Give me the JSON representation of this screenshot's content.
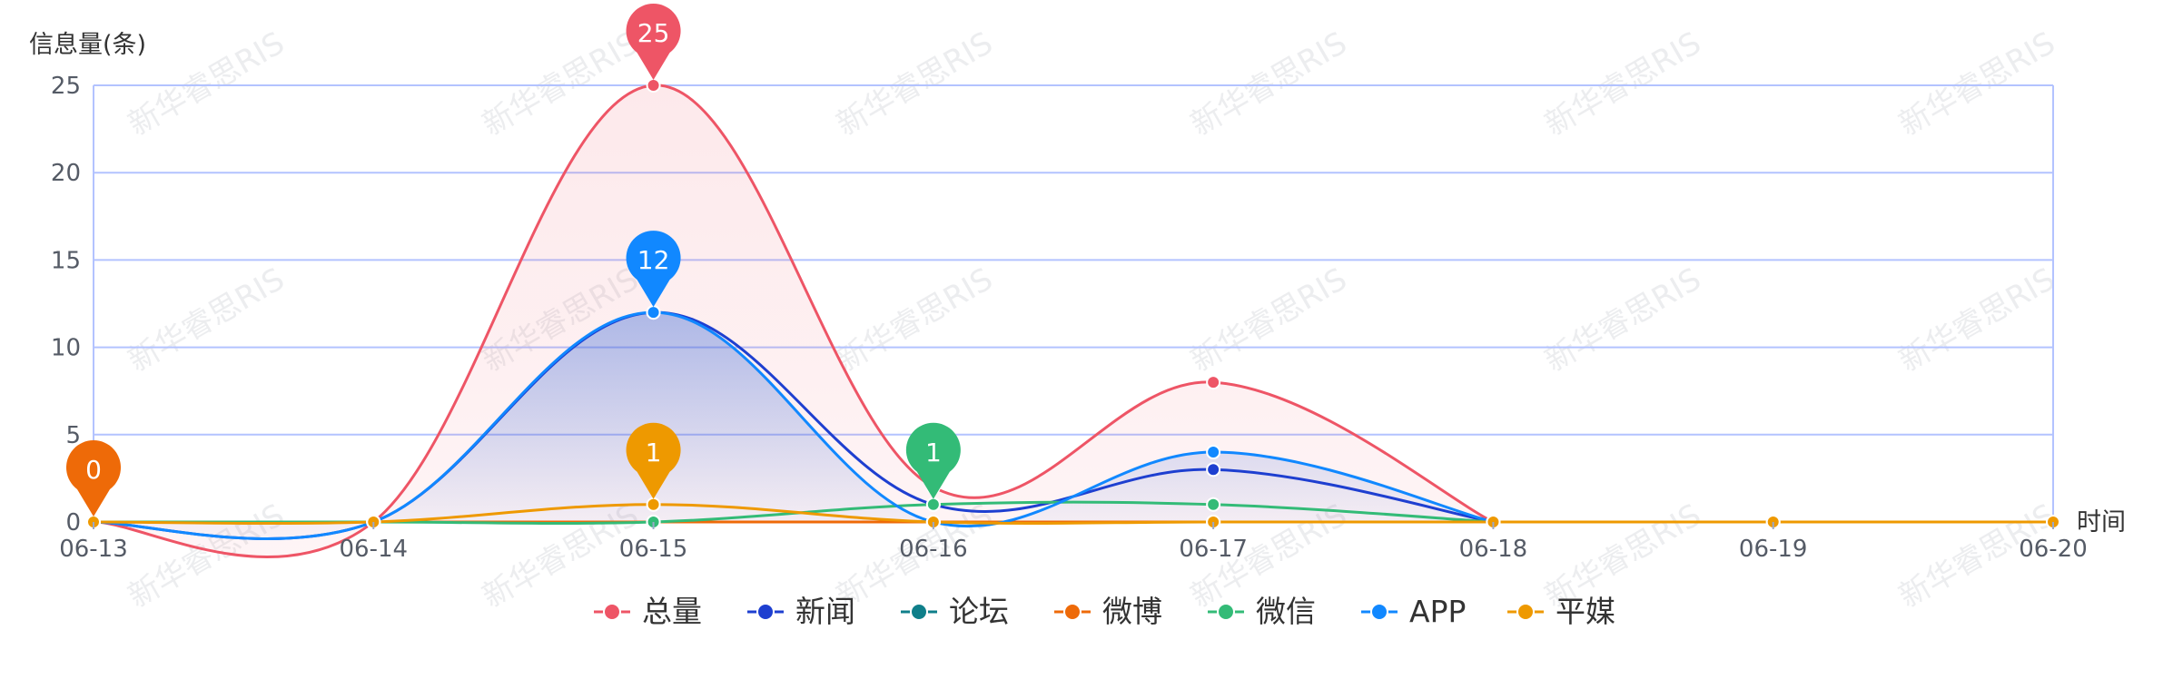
{
  "chart_data": {
    "type": "line",
    "smooth": true,
    "categories": [
      "06-13",
      "06-14",
      "06-15",
      "06-16",
      "06-17",
      "06-18",
      "06-19",
      "06-20"
    ],
    "y_axis_title": "信息量(条)",
    "x_axis_title": "时间",
    "ylim": [
      0,
      25
    ],
    "yticks": [
      0,
      5,
      10,
      15,
      20,
      25
    ],
    "grid": true,
    "legend_position": "bottom-center",
    "series": [
      {
        "name": "总量",
        "color": "#ee5566",
        "values": [
          0,
          0,
          25,
          2,
          8,
          0,
          null,
          null
        ],
        "area": true
      },
      {
        "name": "新闻",
        "color": "#1e3fd0",
        "values": [
          0,
          0,
          12,
          1,
          3,
          0,
          null,
          null
        ],
        "area": false
      },
      {
        "name": "论坛",
        "color": "#0f7f8a",
        "values": [
          0,
          0,
          0,
          0,
          0,
          0,
          null,
          null
        ],
        "area": false
      },
      {
        "name": "微博",
        "color": "#ee6a08",
        "values": [
          0,
          0,
          0,
          0,
          0,
          0,
          0,
          0
        ],
        "area": false
      },
      {
        "name": "微信",
        "color": "#33bb77",
        "values": [
          0,
          0,
          0,
          1,
          1,
          0,
          null,
          null
        ],
        "area": false
      },
      {
        "name": "APP",
        "color": "#1188ff",
        "values": [
          0,
          0,
          12,
          0,
          4,
          0,
          null,
          null
        ],
        "area": true
      },
      {
        "name": "平媒",
        "color": "#ee9900",
        "values": [
          0,
          0,
          1,
          0,
          0,
          0,
          0,
          0
        ],
        "area": false
      }
    ],
    "pins": [
      {
        "series": "微博",
        "x": "06-13",
        "value": 0,
        "label": "0"
      },
      {
        "series": "总量",
        "x": "06-15",
        "value": 25,
        "label": "25"
      },
      {
        "series": "APP",
        "x": "06-15",
        "value": 12,
        "label": "12"
      },
      {
        "series": "平媒",
        "x": "06-15",
        "value": 1,
        "label": "1"
      },
      {
        "series": "微信",
        "x": "06-16",
        "value": 1,
        "label": "1"
      }
    ],
    "watermark": "新华睿思RIS"
  }
}
